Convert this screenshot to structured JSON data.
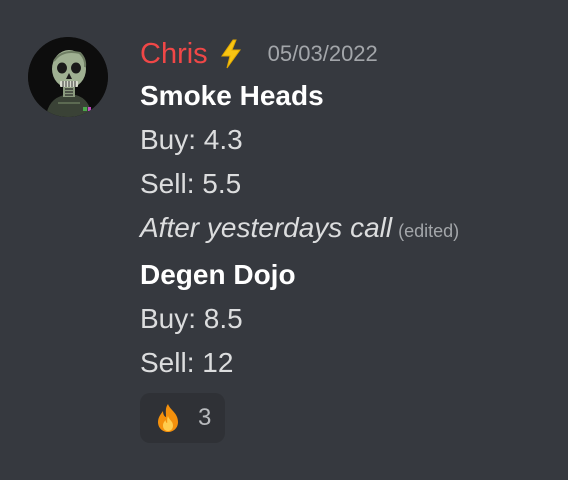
{
  "message": {
    "author": "Chris",
    "author_color": "#f04747",
    "badge_icon": "lightning-bolt-icon",
    "timestamp": "05/03/2022",
    "avatar_icon": "skull-avatar-icon",
    "blocks": [
      {
        "title": "Smoke Heads",
        "buy": "Buy: 4.3",
        "sell": "Sell: 5.5",
        "note": "After yesterdays call",
        "edited": "(edited)"
      },
      {
        "title": "Degen Dojo",
        "buy": "Buy: 8.5",
        "sell": "Sell: 12"
      }
    ],
    "reactions": [
      {
        "emoji": "fire-emoji-icon",
        "count": "3"
      }
    ]
  }
}
